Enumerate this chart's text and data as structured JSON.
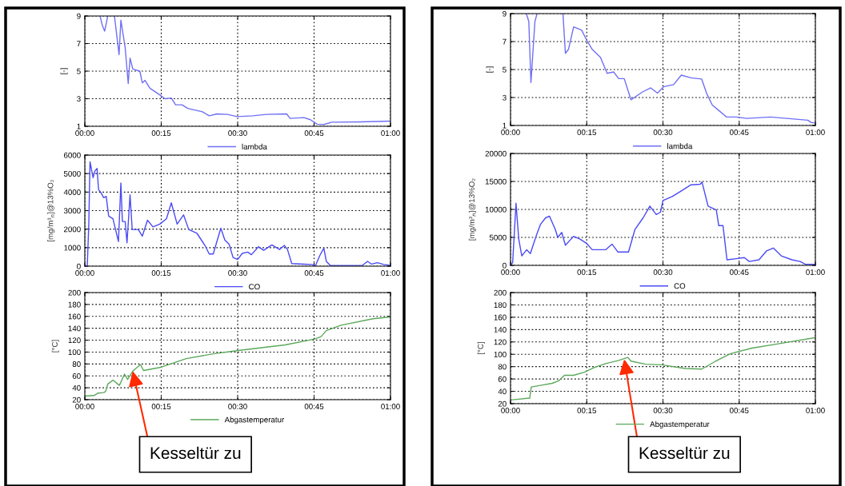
{
  "chart_data": [
    {
      "type": "line",
      "ylabel": "[-]",
      "xlim": [
        0,
        1
      ],
      "xticks": [
        {
          "value": 0,
          "label": "00:00"
        },
        {
          "value": 0.25,
          "label": "00:15"
        },
        {
          "value": 0.5,
          "label": "00:30"
        },
        {
          "value": 0.75,
          "label": "00:45"
        },
        {
          "value": 1,
          "label": "01:00"
        }
      ],
      "ylim": [
        1,
        9
      ],
      "yticks": [
        1,
        3,
        5,
        7,
        9
      ],
      "grid": true,
      "legend": "bottom",
      "series": [
        {
          "name": "lambda",
          "color": "#6f6ff5",
          "x": [
            0.05,
            0.057,
            0.065,
            0.075,
            0.083,
            0.097,
            0.112,
            0.118,
            0.132,
            0.142,
            0.148,
            0.157,
            0.18,
            0.188,
            0.197,
            0.213,
            0.245,
            0.262,
            0.283,
            0.297,
            0.318,
            0.337,
            0.385,
            0.407,
            0.432,
            0.467,
            0.498,
            0.55,
            0.593,
            0.66,
            0.672,
            0.717,
            0.738,
            0.76,
            0.782,
            0.808,
            0.9,
            1.0
          ],
          "values": [
            9,
            8.33,
            7.9,
            9,
            null,
            9,
            6.2,
            8.7,
            6.7,
            4.1,
            5.95,
            5.15,
            5.0,
            4.15,
            4.33,
            3.76,
            3.28,
            3.0,
            3.05,
            2.56,
            2.56,
            2.3,
            2.05,
            1.76,
            1.9,
            1.86,
            1.7,
            1.76,
            1.86,
            1.9,
            1.57,
            1.63,
            1.48,
            1.15,
            1.13,
            1.3,
            1.32,
            1.38
          ]
        }
      ]
    },
    {
      "type": "line",
      "ylabel": "[-]",
      "xlim": [
        0,
        1
      ],
      "xticks": [
        {
          "value": 0,
          "label": "00:00"
        },
        {
          "value": 0.25,
          "label": "00:15"
        },
        {
          "value": 0.5,
          "label": "00:30"
        },
        {
          "value": 0.75,
          "label": "00:45"
        },
        {
          "value": 1,
          "label": "01:00"
        }
      ],
      "ylim": [
        1,
        9
      ],
      "yticks": [
        1,
        3,
        5,
        7,
        9
      ],
      "grid": true,
      "legend": "bottom",
      "series": [
        {
          "name": "lambda",
          "color": "#6f6ff5",
          "x": [
            0.052,
            0.06,
            0.067,
            0.08,
            0.087,
            0.1,
            0.172,
            0.18,
            0.19,
            0.207,
            0.233,
            0.25,
            0.268,
            0.295,
            0.317,
            0.338,
            0.355,
            0.373,
            0.395,
            0.433,
            0.46,
            0.482,
            0.503,
            0.535,
            0.56,
            0.592,
            0.627,
            0.643,
            0.662,
            0.683,
            0.708,
            0.74,
            0.775,
            0.853,
            0.975,
            0.988,
            1.0
          ],
          "values": [
            9,
            8.43,
            4.07,
            8.43,
            9,
            null,
            9,
            6.16,
            6.44,
            8.05,
            7.82,
            7.1,
            6.44,
            5.87,
            4.73,
            4.83,
            4.35,
            4.35,
            2.84,
            3.4,
            3.69,
            3.31,
            3.78,
            3.92,
            4.6,
            4.41,
            4.32,
            3.31,
            2.46,
            2.08,
            1.61,
            1.61,
            1.51,
            1.61,
            1.38,
            1.19,
            1.19
          ]
        }
      ]
    },
    {
      "type": "line",
      "ylabel": "[mg/m³$_{n}$]@13%O₂",
      "xlim": [
        0,
        1
      ],
      "xticks": [
        {
          "value": 0,
          "label": "00:00"
        },
        {
          "value": 0.25,
          "label": "00:15"
        },
        {
          "value": 0.5,
          "label": "00:30"
        },
        {
          "value": 0.75,
          "label": "00:45"
        },
        {
          "value": 1,
          "label": "01:00"
        }
      ],
      "ylim": [
        0,
        6000
      ],
      "yticks": [
        0,
        1000,
        2000,
        3000,
        4000,
        5000,
        6000
      ],
      "grid": true,
      "legend": "bottom",
      "series": [
        {
          "name": "CO",
          "color": "#4a4af5",
          "x": [
            0,
            0.008,
            0.013,
            0.017,
            0.027,
            0.033,
            0.04,
            0.045,
            0.052,
            0.062,
            0.07,
            0.078,
            0.092,
            0.11,
            0.118,
            0.123,
            0.132,
            0.138,
            0.148,
            0.155,
            0.175,
            0.188,
            0.205,
            0.223,
            0.245,
            0.267,
            0.283,
            0.302,
            0.323,
            0.34,
            0.367,
            0.393,
            0.407,
            0.42,
            0.445,
            0.458,
            0.472,
            0.485,
            0.5,
            0.515,
            0.533,
            0.545,
            0.568,
            0.585,
            0.612,
            0.637,
            0.653,
            0.663,
            0.677,
            0.717,
            0.742,
            0.755,
            0.768,
            0.782,
            0.79,
            0.803,
            0.908,
            0.925,
            0.938,
            0.957,
            0.978,
            1.0
          ],
          "values": [
            0,
            0,
            2270,
            5640,
            4780,
            5140,
            5280,
            4130,
            3990,
            3700,
            3770,
            2700,
            2560,
            1330,
            4490,
            2410,
            2410,
            1260,
            3850,
            1980,
            1980,
            1620,
            2480,
            2120,
            2270,
            2560,
            3420,
            2270,
            2770,
            1980,
            1770,
            1120,
            660,
            660,
            2050,
            1410,
            1190,
            470,
            360,
            690,
            760,
            620,
            1050,
            860,
            1150,
            900,
            1120,
            900,
            140,
            110,
            90,
            40,
            550,
            980,
            260,
            40,
            40,
            260,
            110,
            190,
            90,
            40
          ]
        }
      ]
    },
    {
      "type": "line",
      "ylabel": "[mg/m³$_{n}$]@13%O₂",
      "xlim": [
        0,
        1
      ],
      "xticks": [
        {
          "value": 0,
          "label": "00:00"
        },
        {
          "value": 0.25,
          "label": "00:15"
        },
        {
          "value": 0.5,
          "label": "00:30"
        },
        {
          "value": 0.75,
          "label": "00:45"
        },
        {
          "value": 1,
          "label": "01:00"
        }
      ],
      "ylim": [
        0,
        20000
      ],
      "yticks": [
        0,
        5000,
        10000,
        15000,
        20000
      ],
      "grid": true,
      "legend": "bottom",
      "series": [
        {
          "name": "CO",
          "color": "#4a4af5",
          "x": [
            0,
            0.007,
            0.018,
            0.027,
            0.037,
            0.053,
            0.065,
            0.085,
            0.098,
            0.115,
            0.128,
            0.147,
            0.155,
            0.168,
            0.18,
            0.207,
            0.228,
            0.25,
            0.268,
            0.312,
            0.333,
            0.352,
            0.387,
            0.408,
            0.435,
            0.457,
            0.478,
            0.492,
            0.5,
            0.53,
            0.557,
            0.592,
            0.622,
            0.628,
            0.648,
            0.675,
            0.683,
            0.697,
            0.71,
            0.74,
            0.767,
            0.783,
            0.815,
            0.84,
            0.862,
            0.888,
            0.923,
            0.95,
            0.967,
            1.0
          ],
          "values": [
            0,
            500,
            11100,
            4700,
            1700,
            2800,
            2100,
            5400,
            7300,
            8500,
            8800,
            6400,
            5000,
            5900,
            3600,
            5200,
            4700,
            3900,
            2800,
            2800,
            3800,
            2400,
            2400,
            6400,
            8500,
            10600,
            9100,
            9500,
            11600,
            12300,
            13200,
            14400,
            14500,
            14900,
            10600,
            9900,
            7100,
            7100,
            1000,
            1200,
            1400,
            700,
            1000,
            2600,
            3100,
            1700,
            1000,
            700,
            200,
            200
          ]
        }
      ]
    },
    {
      "type": "line",
      "ylabel": "[°C]",
      "xlim": [
        0,
        1
      ],
      "xticks": [
        {
          "value": 0,
          "label": "00:00"
        },
        {
          "value": 0.25,
          "label": "00:15"
        },
        {
          "value": 0.5,
          "label": "00:30"
        },
        {
          "value": 0.75,
          "label": "00:45"
        },
        {
          "value": 1,
          "label": "01:00"
        }
      ],
      "ylim": [
        20,
        200
      ],
      "yticks": [
        20,
        40,
        60,
        80,
        100,
        120,
        140,
        160,
        180,
        200
      ],
      "grid": true,
      "legend": "bottom",
      "annotations": [
        {
          "text": "Kesseltür zu",
          "x": 0.157,
          "y": 68
        }
      ],
      "series": [
        {
          "name": "Abgastemperatur",
          "color": "#5aa85a",
          "x": [
            0,
            0.03,
            0.043,
            0.062,
            0.068,
            0.075,
            0.092,
            0.113,
            0.13,
            0.14,
            0.157,
            0.182,
            0.192,
            0.245,
            0.332,
            0.42,
            0.507,
            0.655,
            0.752,
            0.773,
            0.79,
            0.838,
            0.943,
            1.0
          ],
          "values": [
            26,
            27,
            31,
            32,
            34,
            46,
            53,
            44,
            63,
            54,
            68,
            79,
            69,
            74,
            89,
            97,
            103,
            112,
            122,
            126,
            136,
            145,
            156,
            159
          ]
        }
      ]
    },
    {
      "type": "line",
      "ylabel": "[°C]",
      "xlim": [
        0,
        1
      ],
      "xticks": [
        {
          "value": 0,
          "label": "00:00"
        },
        {
          "value": 0.25,
          "label": "00:15"
        },
        {
          "value": 0.5,
          "label": "00:30"
        },
        {
          "value": 0.75,
          "label": "00:45"
        },
        {
          "value": 1,
          "label": "01:00"
        }
      ],
      "ylim": [
        20,
        200
      ],
      "yticks": [
        20,
        40,
        60,
        80,
        100,
        120,
        140,
        160,
        180,
        200
      ],
      "grid": true,
      "legend": "bottom",
      "annotations": [
        {
          "text": "Kesseltür zu",
          "x": 0.373,
          "y": 92
        }
      ],
      "series": [
        {
          "name": "Abgastemperatur",
          "color": "#5aa85a",
          "x": [
            0,
            0.063,
            0.068,
            0.102,
            0.137,
            0.158,
            0.177,
            0.207,
            0.242,
            0.277,
            0.312,
            0.355,
            0.385,
            0.395,
            0.443,
            0.495,
            0.573,
            0.627,
            0.67,
            0.722,
            0.792,
            0.878,
            1.0
          ],
          "values": [
            26,
            29,
            47,
            50,
            53,
            57,
            66,
            66,
            71,
            79,
            85,
            90,
            95,
            89,
            84,
            83,
            77,
            76,
            88,
            101,
            110,
            117,
            127
          ]
        }
      ]
    }
  ]
}
